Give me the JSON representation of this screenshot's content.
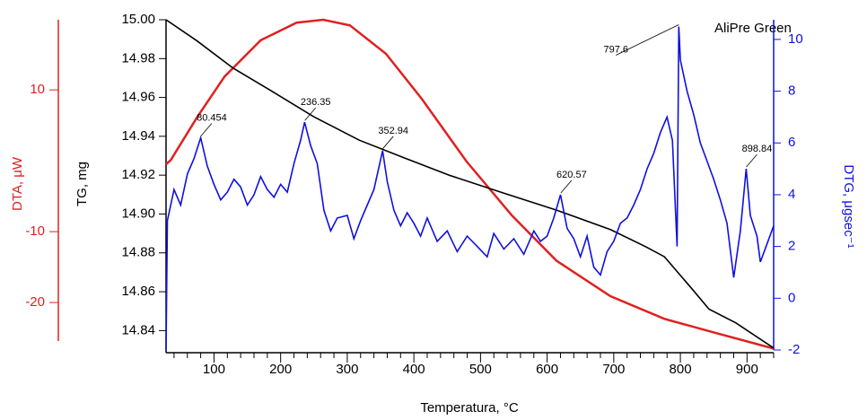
{
  "chart_data": {
    "type": "line",
    "title": "AliPre Green",
    "x_label": "Temperatura, °C",
    "y_label": "TG, mg",
    "y2_label": "DTG, μgsec⁻¹",
    "y3_label": "DTA, μW",
    "xlim": [
      28,
      940
    ],
    "xticks": [
      100,
      200,
      300,
      400,
      500,
      600,
      700,
      800,
      900
    ],
    "xminor_ticks": [
      40,
      60,
      80,
      120,
      140,
      160,
      180,
      220,
      240,
      260,
      280,
      320,
      340,
      360,
      380,
      420,
      440,
      460,
      480,
      520,
      540,
      560,
      580,
      620,
      640,
      660,
      680,
      720,
      740,
      760,
      780,
      820,
      840,
      860,
      880,
      920,
      940
    ],
    "ylim": [
      14.83,
      15.0
    ],
    "yticks": [
      14.84,
      14.86,
      14.88,
      {
        "value": 14.9,
        "label": "14.90"
      },
      14.92,
      14.94,
      14.96,
      14.98,
      {
        "value": 15,
        "label": "15.00"
      }
    ],
    "y2lim": [
      -2,
      10.76
    ],
    "y2ticks": [
      -2,
      0,
      2,
      4,
      6,
      8,
      10
    ],
    "y3lim": [
      -26.7,
      19.9
    ],
    "y3ticks": [
      -20,
      -10,
      10
    ],
    "series": [
      {
        "name": "TG",
        "color": "#000000",
        "axis": "y",
        "x": [
          28,
          75,
          129,
          183,
          250,
          318,
          385,
          453,
          533,
          614,
          695,
          749,
          776,
          816,
          843,
          883,
          940
        ],
        "values": [
          15.0,
          14.989,
          14.975,
          14.964,
          14.95,
          14.938,
          14.929,
          14.92,
          14.911,
          14.902,
          14.892,
          14.883,
          14.878,
          14.862,
          14.851,
          14.844,
          14.831
        ]
      },
      {
        "name": "DTA",
        "color": "#e02020",
        "axis": "y3",
        "x": [
          28,
          35,
          75,
          116,
          170,
          224,
          264,
          304,
          358,
          412,
          479,
          547,
          614,
          695,
          776,
          857,
          940
        ],
        "values": [
          -0.5,
          0.1,
          6.2,
          11.9,
          17,
          19.5,
          19.9,
          19.1,
          15.1,
          8.7,
          -0.1,
          -7.7,
          -14.1,
          -19.1,
          -22.3,
          -24.4,
          -26.5
        ]
      },
      {
        "name": "DTG",
        "color": "#1010e0",
        "axis": "y2",
        "x": [
          28,
          30,
          40,
          50,
          60,
          70,
          80,
          90,
          100,
          110,
          120,
          130,
          140,
          150,
          160,
          170,
          180,
          190,
          200,
          210,
          220,
          230,
          236,
          245,
          255,
          265,
          275,
          285,
          300,
          310,
          320,
          330,
          340,
          353,
          360,
          370,
          380,
          390,
          400,
          410,
          420,
          435,
          450,
          465,
          480,
          495,
          510,
          520,
          535,
          550,
          565,
          580,
          590,
          600,
          610,
          620,
          630,
          640,
          650,
          660,
          670,
          680,
          690,
          700,
          710,
          720,
          730,
          740,
          750,
          760,
          770,
          780,
          788,
          795,
          797.6,
          800,
          805,
          810,
          820,
          830,
          840,
          850,
          860,
          870,
          880,
          890,
          898.84,
          905,
          915,
          920,
          930,
          940
        ],
        "values": [
          -2,
          3,
          4.2,
          3.6,
          4.8,
          5.4,
          6.2,
          5.1,
          4.4,
          3.8,
          4.1,
          4.6,
          4.3,
          3.6,
          4.0,
          4.7,
          4.2,
          3.9,
          4.4,
          4.1,
          5.2,
          6.1,
          6.8,
          5.9,
          5.2,
          3.4,
          2.6,
          3.1,
          3.2,
          2.3,
          3.0,
          3.6,
          4.2,
          5.7,
          4.5,
          3.4,
          2.8,
          3.3,
          2.9,
          2.4,
          3.1,
          2.2,
          2.6,
          1.8,
          2.4,
          2.0,
          1.6,
          2.5,
          1.9,
          2.3,
          1.7,
          2.6,
          2.2,
          2.4,
          3.1,
          4.0,
          2.7,
          2.3,
          1.6,
          2.4,
          1.2,
          0.9,
          1.8,
          2.2,
          2.9,
          3.1,
          3.6,
          4.2,
          5.0,
          5.6,
          6.4,
          7.0,
          6.1,
          2.0,
          10.5,
          9.2,
          8.6,
          8.0,
          7.1,
          6.0,
          5.3,
          4.6,
          3.8,
          2.9,
          0.8,
          2.6,
          5.0,
          3.2,
          2.4,
          1.4,
          2.1,
          2.8
        ]
      }
    ],
    "annotations": {
      "x": [
        80.454,
        236.35,
        352.94,
        620.57,
        797.6,
        898.84
      ],
      "values": [
        6.2,
        6.8,
        5.7,
        4.0,
        10.5,
        5.0
      ]
    }
  }
}
